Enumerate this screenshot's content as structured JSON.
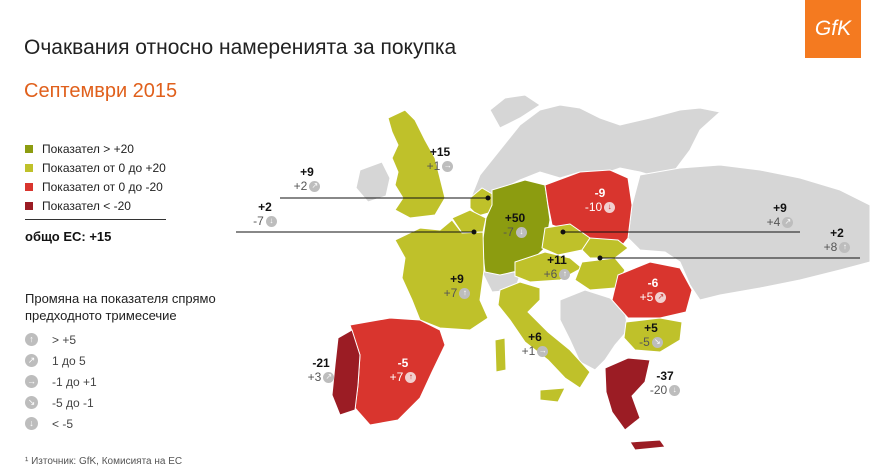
{
  "title": "Очаквания относно намеренията за покупка",
  "subtitle": "Септември 2015",
  "logo_text": "GfK",
  "legend": [
    {
      "label": "Показател > +20",
      "color": "#8c9c10"
    },
    {
      "label": "Показател от 0 до +20",
      "color": "#bfc12a"
    },
    {
      "label": "Показател от 0 до -20",
      "color": "#d9352e"
    },
    {
      "label": "Показател < -20",
      "color": "#9b1c24"
    }
  ],
  "total": "общо ЕС: +15",
  "change_title_line1": "Промяна на показателя спрямо",
  "change_title_line2": "предходното тримесечие",
  "change_legend": [
    {
      "label": "> +5",
      "icon": "arrow-up-icon",
      "glyph": "↑"
    },
    {
      "label": "1 до 5",
      "icon": "arrow-up-right-icon",
      "glyph": "↗"
    },
    {
      "label": "-1 до +1",
      "icon": "arrow-right-icon",
      "glyph": "→"
    },
    {
      "label": "-5 до -1",
      "icon": "arrow-down-right-icon",
      "glyph": "↘"
    },
    {
      "label": "< -5",
      "icon": "arrow-down-icon",
      "glyph": "↓"
    }
  ],
  "source": "¹ Източник: GfK, Комисията на ЕС",
  "countries": {
    "uk": {
      "value": "+15",
      "change": "+1",
      "glyph": "→"
    },
    "netherlands": {
      "value": "+9",
      "change": "+2",
      "glyph": "↗"
    },
    "belgium": {
      "value": "+2",
      "change": "-7",
      "glyph": "↓"
    },
    "germany": {
      "value": "+50",
      "change": "-7",
      "glyph": "↓"
    },
    "poland": {
      "value": "-9",
      "change": "-10",
      "glyph": "↓"
    },
    "czech": {
      "value": "+9",
      "change": "+4",
      "glyph": "↗"
    },
    "slovakia": {
      "value": "+2",
      "change": "+8",
      "glyph": "↑"
    },
    "austria": {
      "value": "+11",
      "change": "+6",
      "glyph": "↑"
    },
    "france": {
      "value": "+9",
      "change": "+7",
      "glyph": "↑"
    },
    "romania": {
      "value": "-6",
      "change": "+5",
      "glyph": "↗"
    },
    "bulgaria": {
      "value": "+5",
      "change": "-5",
      "glyph": "↘"
    },
    "italy": {
      "value": "+6",
      "change": "+1",
      "glyph": "→"
    },
    "portugal": {
      "value": "-21",
      "change": "+3",
      "glyph": "↗"
    },
    "spain": {
      "value": "-5",
      "change": "+7",
      "glyph": "↑"
    },
    "greece": {
      "value": "-37",
      "change": "-20",
      "glyph": "↓"
    }
  }
}
